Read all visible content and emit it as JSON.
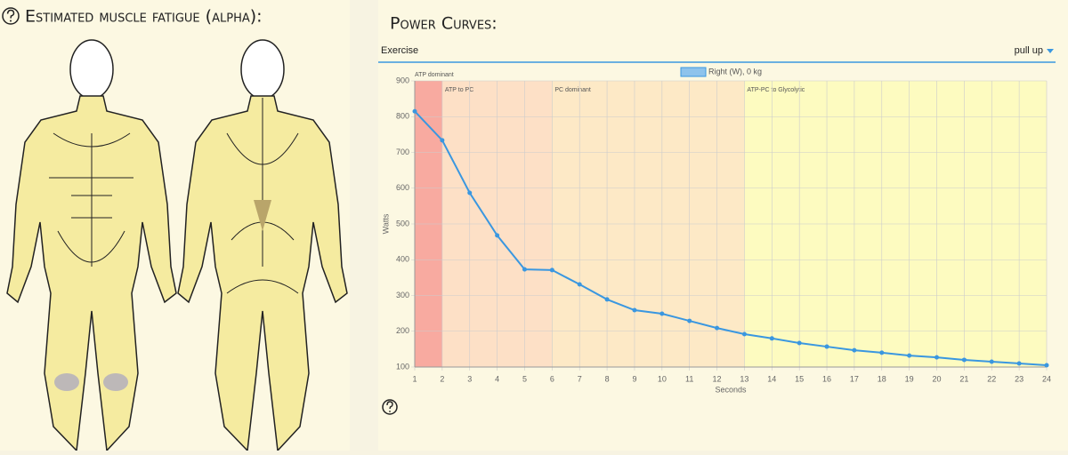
{
  "left_panel": {
    "title": "Estimated muscle fatigue (alpha):"
  },
  "right_panel": {
    "title": "Power Curves:",
    "exercise_label": "Exercise",
    "exercise_value": "pull up"
  },
  "chart_data": {
    "type": "line",
    "x": [
      1,
      2,
      3,
      4,
      5,
      6,
      7,
      8,
      9,
      10,
      11,
      12,
      13,
      14,
      15,
      16,
      17,
      18,
      19,
      20,
      21,
      22,
      23,
      24
    ],
    "series": [
      {
        "name": "Right (W), 0 kg",
        "color": "#3a97e0",
        "values": [
          815,
          734,
          587,
          468,
          373,
          371,
          331,
          289,
          259,
          249,
          229,
          209,
          192,
          180,
          167,
          157,
          147,
          140,
          132,
          127,
          120,
          115,
          110,
          105
        ]
      }
    ],
    "xlim": [
      1,
      24
    ],
    "xticks": [
      1,
      2,
      3,
      4,
      5,
      6,
      7,
      8,
      9,
      10,
      11,
      12,
      13,
      14,
      15,
      16,
      17,
      18,
      19,
      20,
      21,
      22,
      23,
      24
    ],
    "ylim": [
      100,
      900
    ],
    "yticks": [
      100,
      200,
      300,
      400,
      500,
      600,
      700,
      800,
      900
    ],
    "x_label": "Seconds",
    "y_label": "Watts",
    "grid": true,
    "legend": "top",
    "zones": [
      {
        "label": "ATP dominant",
        "start": 1,
        "end": 2,
        "color": "#f8aaa0"
      },
      {
        "label": "ATP to PC",
        "start": 2,
        "end": 6,
        "color": "#fde0c6"
      },
      {
        "label": "PC dominant",
        "start": 6,
        "end": 13,
        "color": "#fde9c6"
      },
      {
        "label": "ATP-PC to Glycolytic",
        "start": 13,
        "end": 24,
        "color": "#fdfbc0"
      }
    ]
  }
}
